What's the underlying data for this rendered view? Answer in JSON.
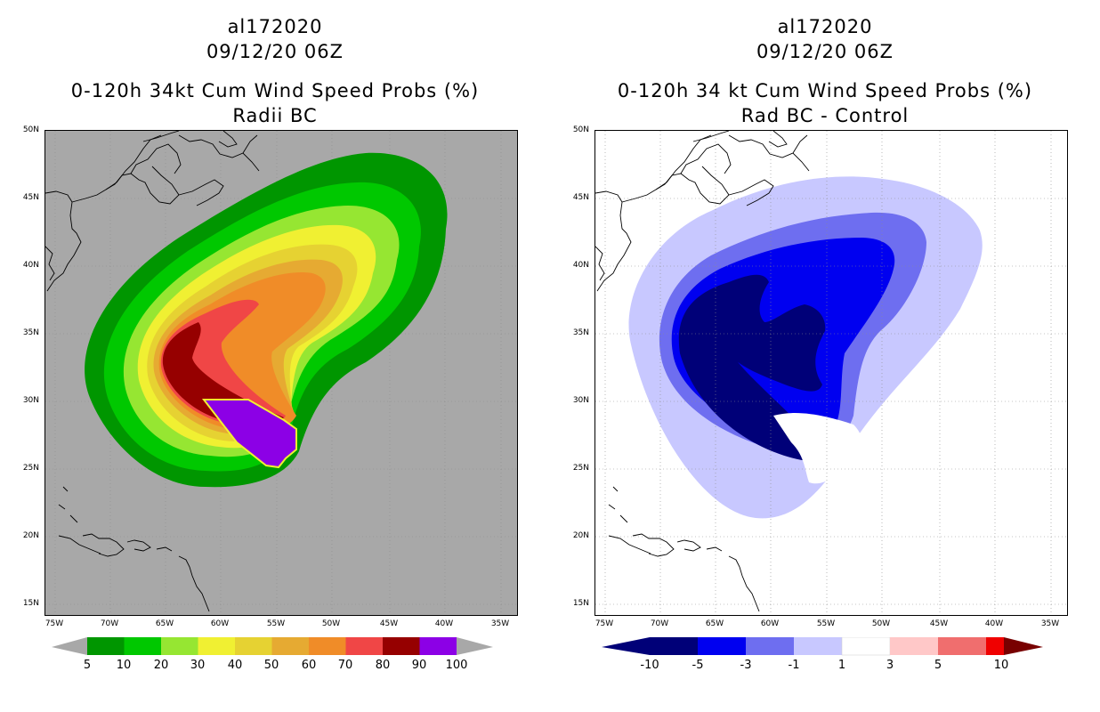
{
  "storm_id": "al172020",
  "datetime": "09/12/20 06Z",
  "left_panel": {
    "title": "0-120h 34kt Cum Wind Speed Probs (%)",
    "subtitle": "Radii BC",
    "colorbar_labels": [
      "5",
      "10",
      "20",
      "30",
      "40",
      "50",
      "60",
      "70",
      "80",
      "90",
      "100"
    ],
    "colorbar_colors": [
      "#009600",
      "#00c800",
      "#96e632",
      "#f0f032",
      "#e6d232",
      "#e6aa32",
      "#f08c28",
      "#f04646",
      "#960000",
      "#8c00e6"
    ]
  },
  "right_panel": {
    "title": "0-120h 34 kt Cum Wind Speed Probs (%)",
    "subtitle": "Rad BC - Control",
    "colorbar_labels": [
      "-10",
      "-5",
      "-3",
      "-1",
      "1",
      "3",
      "5",
      "10"
    ],
    "colorbar_colors": [
      "#000078",
      "#0000f0",
      "#6e6ef0",
      "#c8c8ff",
      "#ffffff",
      "#ffc8c8",
      "#f06e6e",
      "#f00000"
    ],
    "extend_low_color": "#000078",
    "extend_high_color": "#780000"
  },
  "axes": {
    "lat_labels": [
      "50N",
      "45N",
      "40N",
      "35N",
      "30N",
      "25N",
      "20N",
      "15N"
    ],
    "lon_labels": [
      "75W",
      "70W",
      "65W",
      "60W",
      "55W",
      "50W",
      "45W",
      "40W",
      "35W"
    ]
  }
}
